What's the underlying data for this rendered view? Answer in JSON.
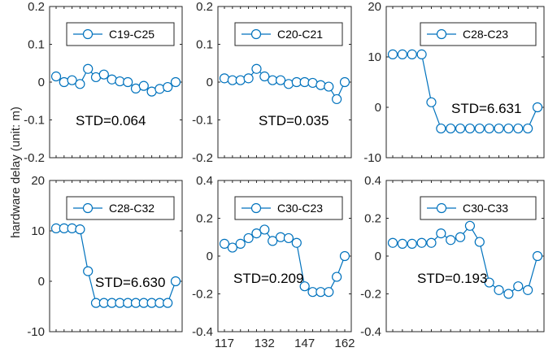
{
  "figure": {
    "ylabel": "hardware delay (unit: m)",
    "series_color": "#0072BD",
    "axis_color": "#262626"
  },
  "chart_data": [
    {
      "type": "line",
      "legend": "C19-C25",
      "annotation": "STD=0.064",
      "x": [
        117,
        120,
        123,
        126,
        129,
        132,
        135,
        138,
        141,
        144,
        147,
        150,
        153,
        156,
        159,
        162
      ],
      "y": [
        0.015,
        0.0,
        0.005,
        -0.005,
        0.035,
        0.013,
        0.02,
        0.007,
        0.002,
        0.0,
        -0.017,
        -0.01,
        -0.025,
        -0.018,
        -0.013,
        0.0
      ],
      "ylim": [
        -0.2,
        0.2
      ],
      "yticks": [
        -0.2,
        -0.1,
        0,
        0.1,
        0.2
      ],
      "ytick_labels": [
        "-0.2",
        "-0.1",
        "0",
        "0.1",
        "0.2"
      ]
    },
    {
      "type": "line",
      "legend": "C20-C21",
      "annotation": "STD=0.035",
      "x": [
        117,
        120,
        123,
        126,
        129,
        132,
        135,
        138,
        141,
        144,
        147,
        150,
        153,
        156,
        159,
        162
      ],
      "y": [
        0.01,
        0.005,
        0.005,
        0.01,
        0.035,
        0.015,
        0.005,
        0.005,
        -0.005,
        0.0,
        0.0,
        -0.002,
        -0.008,
        -0.012,
        -0.045,
        0.0
      ],
      "ylim": [
        -0.2,
        0.2
      ],
      "yticks": [
        -0.2,
        -0.1,
        0,
        0.1,
        0.2
      ],
      "ytick_labels": [
        "-0.2",
        "-0.1",
        "0",
        "0.1",
        "0.2"
      ]
    },
    {
      "type": "line",
      "legend": "C28-C23",
      "annotation": "STD=6.631",
      "x": [
        117,
        120,
        123,
        126,
        129,
        132,
        135,
        138,
        141,
        144,
        147,
        150,
        153,
        156,
        159,
        162
      ],
      "y": [
        10.5,
        10.5,
        10.5,
        10.5,
        1.0,
        -4.2,
        -4.2,
        -4.2,
        -4.2,
        -4.2,
        -4.2,
        -4.2,
        -4.2,
        -4.2,
        -4.2,
        0.0
      ],
      "ylim": [
        -10,
        20
      ],
      "yticks": [
        -10,
        0,
        10,
        20
      ],
      "ytick_labels": [
        "-10",
        "0",
        "10",
        "20"
      ]
    },
    {
      "type": "line",
      "legend": "C28-C32",
      "annotation": "STD=6.630",
      "x": [
        117,
        120,
        123,
        126,
        129,
        132,
        135,
        138,
        141,
        144,
        147,
        150,
        153,
        156,
        159,
        162
      ],
      "y": [
        10.5,
        10.5,
        10.5,
        10.3,
        2.0,
        -4.3,
        -4.3,
        -4.3,
        -4.3,
        -4.3,
        -4.3,
        -4.3,
        -4.3,
        -4.3,
        -4.3,
        0.0
      ],
      "ylim": [
        -10,
        20
      ],
      "yticks": [
        -10,
        0,
        10,
        20
      ],
      "ytick_labels": [
        "-10",
        "0",
        "10",
        "20"
      ]
    },
    {
      "type": "line",
      "legend": "C30-C23",
      "annotation": "STD=0.209",
      "x": [
        117,
        120,
        123,
        126,
        129,
        132,
        135,
        138,
        141,
        144,
        147,
        150,
        153,
        156,
        159,
        162
      ],
      "y": [
        0.065,
        0.045,
        0.065,
        0.095,
        0.12,
        0.14,
        0.08,
        0.1,
        0.095,
        0.07,
        -0.16,
        -0.19,
        -0.19,
        -0.19,
        -0.11,
        0.0
      ],
      "ylim": [
        -0.4,
        0.4
      ],
      "yticks": [
        -0.4,
        -0.2,
        0,
        0.2,
        0.4
      ],
      "ytick_labels": [
        "-0.4",
        "-0.2",
        "0",
        "0.2",
        "0.4"
      ],
      "xticks": [
        117,
        132,
        147,
        162
      ],
      "xtick_labels": [
        "117",
        "132",
        "147",
        "162"
      ]
    },
    {
      "type": "line",
      "legend": "C30-C33",
      "annotation": "STD=0.193",
      "x": [
        117,
        120,
        123,
        126,
        129,
        132,
        135,
        138,
        141,
        144,
        147,
        150,
        153,
        156,
        159,
        162
      ],
      "y": [
        0.07,
        0.065,
        0.065,
        0.07,
        0.07,
        0.12,
        0.085,
        0.1,
        0.16,
        0.075,
        -0.14,
        -0.18,
        -0.2,
        -0.16,
        -0.18,
        0.0
      ],
      "ylim": [
        -0.4,
        0.4
      ],
      "yticks": [
        -0.4,
        -0.2,
        0,
        0.2,
        0.4
      ],
      "ytick_labels": [
        "-0.4",
        "-0.2",
        "0",
        "0.2",
        "0.4"
      ]
    }
  ]
}
